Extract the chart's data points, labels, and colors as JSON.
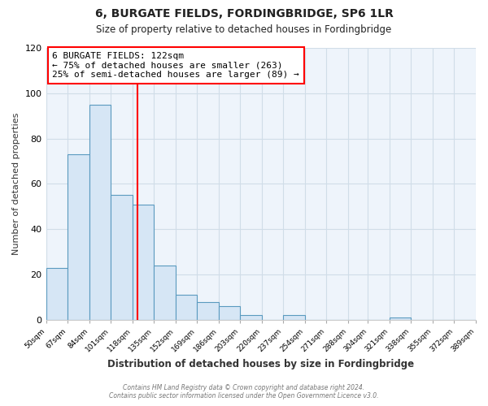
{
  "title": "6, BURGATE FIELDS, FORDINGBRIDGE, SP6 1LR",
  "subtitle": "Size of property relative to detached houses in Fordingbridge",
  "xlabel": "Distribution of detached houses by size in Fordingbridge",
  "ylabel": "Number of detached properties",
  "bar_edges": [
    50,
    67,
    84,
    101,
    118,
    135,
    152,
    169,
    186,
    203,
    220,
    237,
    254,
    271,
    288,
    304,
    321,
    338,
    355,
    372,
    389
  ],
  "bar_heights": [
    23,
    73,
    95,
    55,
    51,
    24,
    11,
    8,
    6,
    2,
    0,
    2,
    0,
    0,
    0,
    0,
    1,
    0,
    0,
    0
  ],
  "bar_color": "#d6e6f5",
  "bar_edgecolor": "#5a9abf",
  "vline_x": 122,
  "vline_color": "red",
  "ylim": [
    0,
    120
  ],
  "yticks": [
    0,
    20,
    40,
    60,
    80,
    100,
    120
  ],
  "annotation_line1": "6 BURGATE FIELDS: 122sqm",
  "annotation_line2": "← 75% of detached houses are smaller (263)",
  "annotation_line3": "25% of semi-detached houses are larger (89) →",
  "annotation_box_edgecolor": "red",
  "annotation_box_facecolor": "#ffffff",
  "footer_line1": "Contains HM Land Registry data © Crown copyright and database right 2024.",
  "footer_line2": "Contains public sector information licensed under the Open Government Licence v3.0.",
  "background_color": "#ffffff",
  "plot_bg_color": "#eef4fb",
  "grid_color": "#d0dde8",
  "tick_labels": [
    "50sqm",
    "67sqm",
    "84sqm",
    "101sqm",
    "118sqm",
    "135sqm",
    "152sqm",
    "169sqm",
    "186sqm",
    "203sqm",
    "220sqm",
    "237sqm",
    "254sqm",
    "271sqm",
    "288sqm",
    "304sqm",
    "321sqm",
    "338sqm",
    "355sqm",
    "372sqm",
    "389sqm"
  ]
}
